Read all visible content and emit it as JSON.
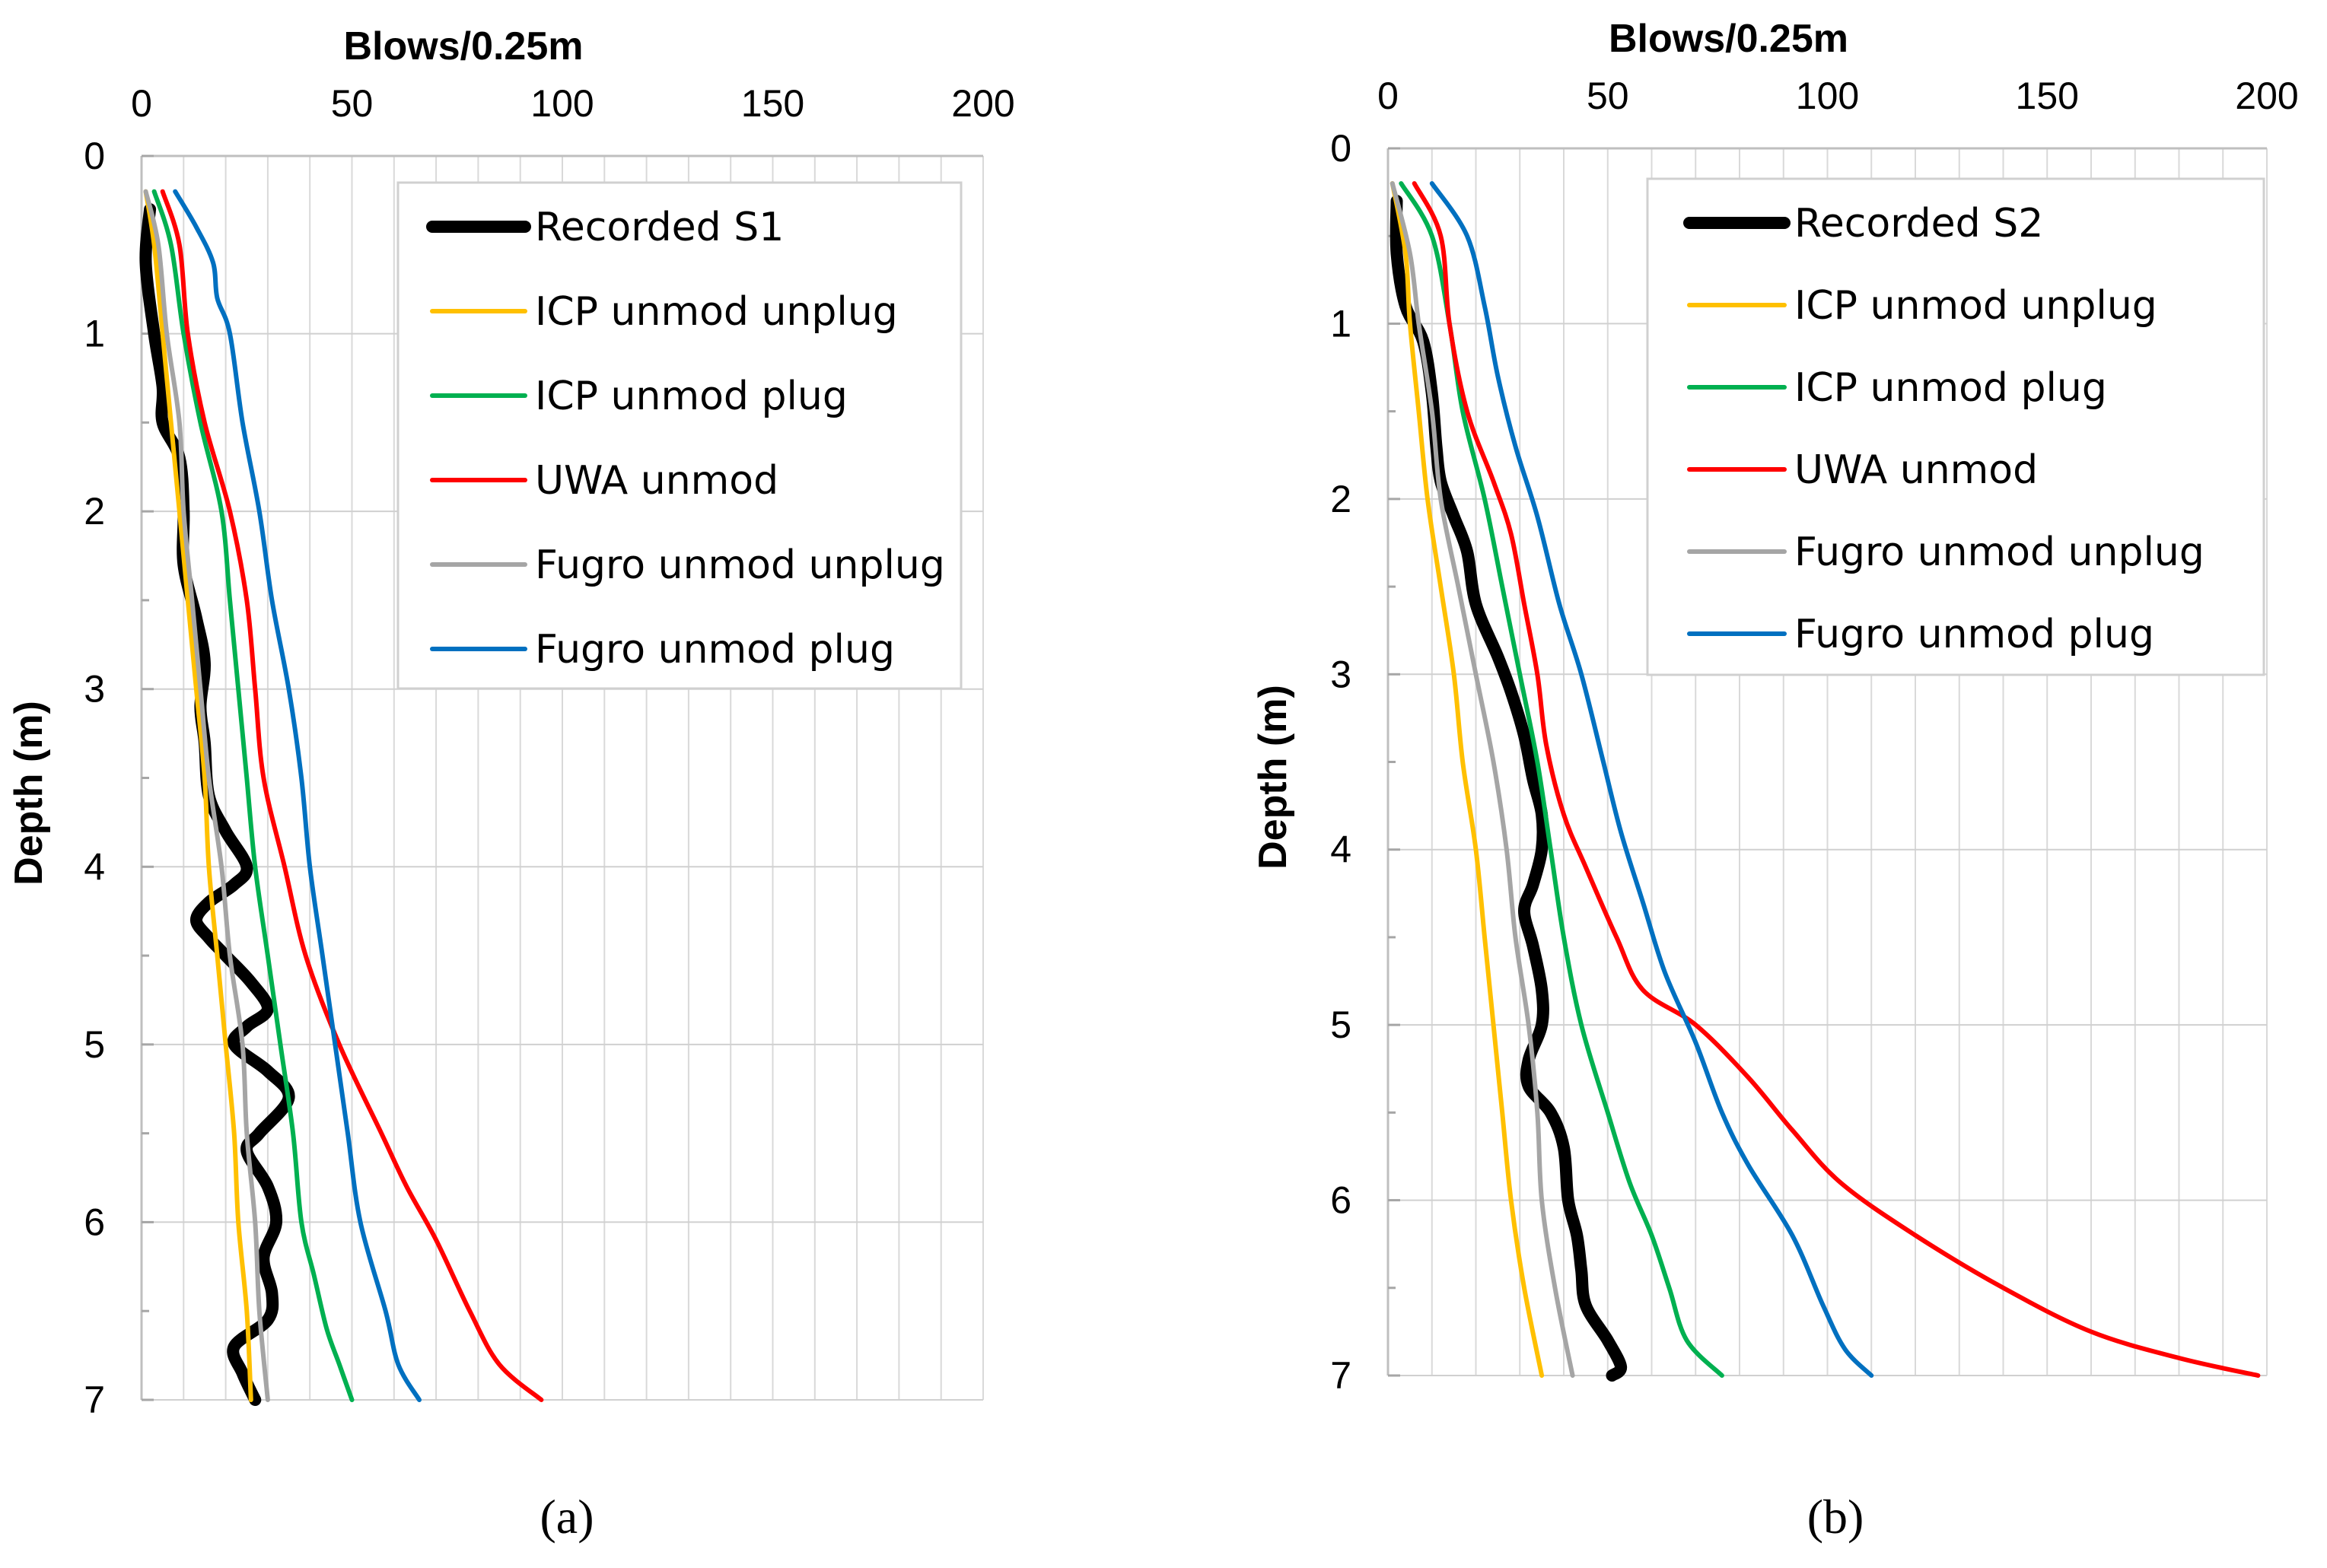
{
  "figure": {
    "panels": [
      {
        "caption": "(a)",
        "chart_index": 0
      },
      {
        "caption": "(b)",
        "chart_index": 1
      }
    ]
  },
  "chart_data": [
    {
      "type": "line",
      "title": "",
      "xlabel": "Blows/0.25m",
      "ylabel": "Depth (m)",
      "xlim": [
        0,
        200
      ],
      "ylim": [
        0,
        7
      ],
      "y_inverted": true,
      "x_axis_position": "top",
      "x_ticks": [
        0,
        50,
        100,
        150,
        200
      ],
      "x_tick_labels": [
        "0",
        "50",
        "100",
        "150",
        "200"
      ],
      "y_ticks": [
        0,
        1,
        2,
        3,
        4,
        5,
        6,
        7
      ],
      "y_tick_labels": [
        "0",
        "1",
        "2",
        "3",
        "4",
        "5",
        "6",
        "7"
      ],
      "grid": true,
      "legend_position": "top-right",
      "series": [
        {
          "name": "Recorded S1",
          "color": "#000000",
          "width": "thick",
          "points": [
            [
              2,
              0.3
            ],
            [
              1,
              0.6
            ],
            [
              3,
              1.0
            ],
            [
              5,
              1.3
            ],
            [
              5,
              1.5
            ],
            [
              9,
              1.7
            ],
            [
              10,
              2.0
            ],
            [
              10,
              2.3
            ],
            [
              13,
              2.6
            ],
            [
              15,
              2.85
            ],
            [
              14,
              3.1
            ],
            [
              15,
              3.3
            ],
            [
              16,
              3.6
            ],
            [
              20,
              3.8
            ],
            [
              25,
              4.0
            ],
            [
              22,
              4.1
            ],
            [
              16,
              4.2
            ],
            [
              13,
              4.3
            ],
            [
              16,
              4.4
            ],
            [
              20,
              4.5
            ],
            [
              26,
              4.65
            ],
            [
              30,
              4.8
            ],
            [
              25,
              4.9
            ],
            [
              22,
              5.0
            ],
            [
              30,
              5.15
            ],
            [
              35,
              5.3
            ],
            [
              28,
              5.5
            ],
            [
              25,
              5.6
            ],
            [
              30,
              5.8
            ],
            [
              32,
              6.0
            ],
            [
              29,
              6.2
            ],
            [
              31,
              6.4
            ],
            [
              30,
              6.55
            ],
            [
              22,
              6.7
            ],
            [
              24,
              6.85
            ],
            [
              27,
              7.0
            ]
          ]
        },
        {
          "name": "ICP unmod unplug",
          "color": "#ffc000",
          "width": "normal",
          "points": [
            [
              1,
              0.2
            ],
            [
              3,
              0.5
            ],
            [
              5,
              1.0
            ],
            [
              7,
              1.5
            ],
            [
              9,
              2.0
            ],
            [
              11,
              2.5
            ],
            [
              13,
              3.0
            ],
            [
              15,
              3.5
            ],
            [
              16,
              4.0
            ],
            [
              18,
              4.5
            ],
            [
              20,
              5.0
            ],
            [
              22,
              5.5
            ],
            [
              23,
              6.0
            ],
            [
              25,
              6.5
            ],
            [
              26,
              7.0
            ]
          ]
        },
        {
          "name": "ICP unmod plug",
          "color": "#00b050",
          "width": "normal",
          "points": [
            [
              3,
              0.2
            ],
            [
              7,
              0.5
            ],
            [
              10,
              1.0
            ],
            [
              14,
              1.5
            ],
            [
              19,
              2.0
            ],
            [
              21,
              2.5
            ],
            [
              23,
              3.0
            ],
            [
              25,
              3.5
            ],
            [
              27,
              4.0
            ],
            [
              30,
              4.5
            ],
            [
              33,
              5.0
            ],
            [
              36,
              5.5
            ],
            [
              38,
              6.0
            ],
            [
              41,
              6.3
            ],
            [
              44,
              6.6
            ],
            [
              47,
              6.8
            ],
            [
              50,
              7.0
            ]
          ]
        },
        {
          "name": "UWA unmod",
          "color": "#ff0000",
          "width": "normal",
          "points": [
            [
              5,
              0.2
            ],
            [
              9,
              0.5
            ],
            [
              11,
              1.0
            ],
            [
              15,
              1.5
            ],
            [
              21,
              2.0
            ],
            [
              25,
              2.5
            ],
            [
              27,
              3.0
            ],
            [
              29,
              3.5
            ],
            [
              34,
              4.0
            ],
            [
              39,
              4.5
            ],
            [
              47,
              5.0
            ],
            [
              57,
              5.5
            ],
            [
              63,
              5.8
            ],
            [
              70,
              6.1
            ],
            [
              78,
              6.5
            ],
            [
              85,
              6.8
            ],
            [
              95,
              7.0
            ]
          ]
        },
        {
          "name": "Fugro unmod unplug",
          "color": "#a5a5a5",
          "width": "normal",
          "points": [
            [
              1,
              0.2
            ],
            [
              4,
              0.5
            ],
            [
              6,
              1.0
            ],
            [
              9,
              1.5
            ],
            [
              10,
              2.0
            ],
            [
              12,
              2.5
            ],
            [
              14,
              3.0
            ],
            [
              16,
              3.5
            ],
            [
              19,
              4.0
            ],
            [
              21,
              4.5
            ],
            [
              24,
              5.0
            ],
            [
              25,
              5.5
            ],
            [
              27,
              6.0
            ],
            [
              28,
              6.5
            ],
            [
              30,
              7.0
            ]
          ]
        },
        {
          "name": "Fugro unmod plug",
          "color": "#0070c0",
          "width": "normal",
          "points": [
            [
              8,
              0.2
            ],
            [
              13,
              0.4
            ],
            [
              17,
              0.6
            ],
            [
              18,
              0.8
            ],
            [
              21,
              1.0
            ],
            [
              24,
              1.5
            ],
            [
              28,
              2.0
            ],
            [
              31,
              2.5
            ],
            [
              35,
              3.0
            ],
            [
              38,
              3.5
            ],
            [
              40,
              4.0
            ],
            [
              43,
              4.5
            ],
            [
              46,
              5.0
            ],
            [
              49,
              5.5
            ],
            [
              52,
              6.0
            ],
            [
              58,
              6.5
            ],
            [
              61,
              6.8
            ],
            [
              66,
              7.0
            ]
          ]
        }
      ]
    },
    {
      "type": "line",
      "title": "",
      "xlabel": "Blows/0.25m",
      "ylabel": "Depth (m)",
      "xlim": [
        0,
        200
      ],
      "ylim": [
        0,
        7
      ],
      "y_inverted": true,
      "x_axis_position": "top",
      "x_ticks": [
        0,
        50,
        100,
        150,
        200
      ],
      "x_tick_labels": [
        "0",
        "50",
        "100",
        "150",
        "200"
      ],
      "y_ticks": [
        0,
        1,
        2,
        3,
        4,
        5,
        6,
        7
      ],
      "y_tick_labels": [
        "0",
        "1",
        "2",
        "3",
        "4",
        "5",
        "6",
        "7"
      ],
      "grid": true,
      "legend_position": "top-right",
      "series": [
        {
          "name": "Recorded S2",
          "color": "#000000",
          "width": "thick",
          "points": [
            [
              2,
              0.3
            ],
            [
              2,
              0.6
            ],
            [
              4,
              0.9
            ],
            [
              8,
              1.1
            ],
            [
              10,
              1.4
            ],
            [
              11,
              1.7
            ],
            [
              12,
              1.9
            ],
            [
              15,
              2.1
            ],
            [
              18,
              2.3
            ],
            [
              20,
              2.6
            ],
            [
              25,
              2.9
            ],
            [
              28,
              3.1
            ],
            [
              31,
              3.35
            ],
            [
              33,
              3.6
            ],
            [
              35,
              3.8
            ],
            [
              35,
              4.0
            ],
            [
              33,
              4.2
            ],
            [
              31,
              4.35
            ],
            [
              33,
              4.55
            ],
            [
              35,
              4.8
            ],
            [
              35,
              5.0
            ],
            [
              32,
              5.2
            ],
            [
              32,
              5.35
            ],
            [
              37,
              5.5
            ],
            [
              40,
              5.7
            ],
            [
              41,
              6.0
            ],
            [
              43,
              6.2
            ],
            [
              44,
              6.4
            ],
            [
              45,
              6.6
            ],
            [
              50,
              6.8
            ],
            [
              53,
              6.95
            ],
            [
              51,
              7.0
            ]
          ]
        },
        {
          "name": "ICP unmod unplug",
          "color": "#ffc000",
          "width": "normal",
          "points": [
            [
              1,
              0.2
            ],
            [
              4,
              0.6
            ],
            [
              5,
              1.0
            ],
            [
              7,
              1.5
            ],
            [
              9,
              2.0
            ],
            [
              12,
              2.5
            ],
            [
              15,
              3.0
            ],
            [
              17,
              3.5
            ],
            [
              20,
              4.0
            ],
            [
              22,
              4.5
            ],
            [
              24,
              5.0
            ],
            [
              26,
              5.5
            ],
            [
              28,
              6.0
            ],
            [
              31,
              6.5
            ],
            [
              35,
              7.0
            ]
          ]
        },
        {
          "name": "ICP unmod plug",
          "color": "#00b050",
          "width": "normal",
          "points": [
            [
              3,
              0.2
            ],
            [
              10,
              0.5
            ],
            [
              14,
              1.0
            ],
            [
              17,
              1.5
            ],
            [
              22,
              2.0
            ],
            [
              26,
              2.5
            ],
            [
              30,
              3.0
            ],
            [
              34,
              3.5
            ],
            [
              37,
              4.0
            ],
            [
              40,
              4.5
            ],
            [
              44,
              5.0
            ],
            [
              50,
              5.5
            ],
            [
              55,
              5.9
            ],
            [
              60,
              6.2
            ],
            [
              64,
              6.5
            ],
            [
              68,
              6.8
            ],
            [
              76,
              7.0
            ]
          ]
        },
        {
          "name": "UWA unmod",
          "color": "#ff0000",
          "width": "normal",
          "points": [
            [
              6,
              0.2
            ],
            [
              12,
              0.5
            ],
            [
              14,
              1.0
            ],
            [
              18,
              1.5
            ],
            [
              24,
              1.9
            ],
            [
              28,
              2.2
            ],
            [
              31,
              2.6
            ],
            [
              34,
              3.0
            ],
            [
              36,
              3.4
            ],
            [
              40,
              3.8
            ],
            [
              45,
              4.1
            ],
            [
              52,
              4.5
            ],
            [
              58,
              4.8
            ],
            [
              70,
              5.0
            ],
            [
              82,
              5.3
            ],
            [
              92,
              5.6
            ],
            [
              103,
              5.9
            ],
            [
              120,
              6.2
            ],
            [
              140,
              6.5
            ],
            [
              160,
              6.75
            ],
            [
              180,
              6.9
            ],
            [
              198,
              7.0
            ]
          ]
        },
        {
          "name": "Fugro unmod unplug",
          "color": "#a5a5a5",
          "width": "normal",
          "points": [
            [
              1,
              0.2
            ],
            [
              5,
              0.6
            ],
            [
              7,
              1.0
            ],
            [
              10,
              1.5
            ],
            [
              12,
              2.0
            ],
            [
              16,
              2.5
            ],
            [
              20,
              3.0
            ],
            [
              24,
              3.5
            ],
            [
              27,
              4.0
            ],
            [
              29,
              4.5
            ],
            [
              32,
              5.0
            ],
            [
              34,
              5.5
            ],
            [
              35,
              6.0
            ],
            [
              38,
              6.5
            ],
            [
              42,
              7.0
            ]
          ]
        },
        {
          "name": "Fugro unmod plug",
          "color": "#0070c0",
          "width": "normal",
          "points": [
            [
              10,
              0.2
            ],
            [
              18,
              0.5
            ],
            [
              22,
              0.9
            ],
            [
              25,
              1.3
            ],
            [
              29,
              1.7
            ],
            [
              34,
              2.1
            ],
            [
              39,
              2.6
            ],
            [
              44,
              3.0
            ],
            [
              49,
              3.5
            ],
            [
              53,
              3.9
            ],
            [
              58,
              4.3
            ],
            [
              63,
              4.7
            ],
            [
              70,
              5.1
            ],
            [
              76,
              5.5
            ],
            [
              82,
              5.8
            ],
            [
              92,
              6.2
            ],
            [
              99,
              6.6
            ],
            [
              104,
              6.85
            ],
            [
              110,
              7.0
            ]
          ]
        }
      ]
    }
  ]
}
